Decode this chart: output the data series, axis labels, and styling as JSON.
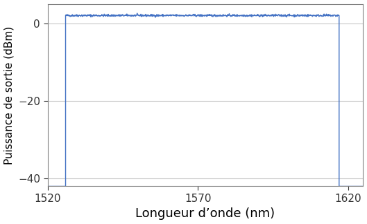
{
  "xlabel": "Longueur d’onde (nm)",
  "ylabel": "Puissance de sortie (dBm)",
  "xlim": [
    1520,
    1625
  ],
  "ylim": [
    -42,
    5
  ],
  "xticks": [
    1520,
    1570,
    1620
  ],
  "yticks": [
    -40,
    -20,
    0
  ],
  "line_color": "#4472C4",
  "line_width": 1.0,
  "background_color": "#ffffff",
  "grid_color": "#c8c8c8",
  "flat_level": 2.0,
  "noise_floor": -42.0,
  "x_start": 1526,
  "x_end": 1617,
  "xlabel_fontsize": 13,
  "ylabel_fontsize": 11,
  "tick_fontsize": 11,
  "noise_amplitude": 0.15,
  "spine_color": "#808080"
}
